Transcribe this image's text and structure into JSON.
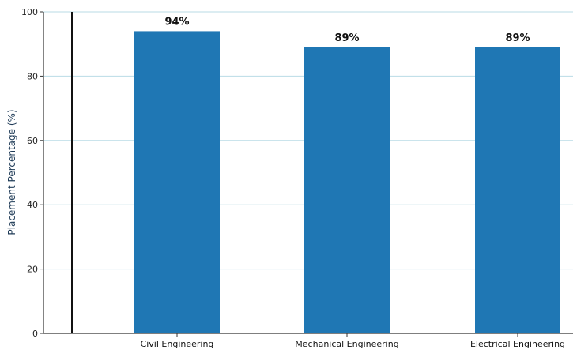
{
  "chart_data": {
    "type": "bar",
    "title": "",
    "xlabel": "",
    "ylabel": "Placement Percentage (%)",
    "ylim": [
      0,
      100
    ],
    "yticks": [
      0,
      20,
      40,
      60,
      80,
      100
    ],
    "grid": "horizontal",
    "legend": "none",
    "categories": [
      "Civil Engineering",
      "Mechanical Engineering",
      "Electrical Engineering"
    ],
    "values": [
      94,
      89,
      89
    ],
    "data_labels": [
      "94%",
      "89%",
      "89%"
    ],
    "colors": {
      "bar": "#1f77b4",
      "grid": "#b9dbe6",
      "axis": "#333333",
      "reference_line": "#111111"
    }
  }
}
